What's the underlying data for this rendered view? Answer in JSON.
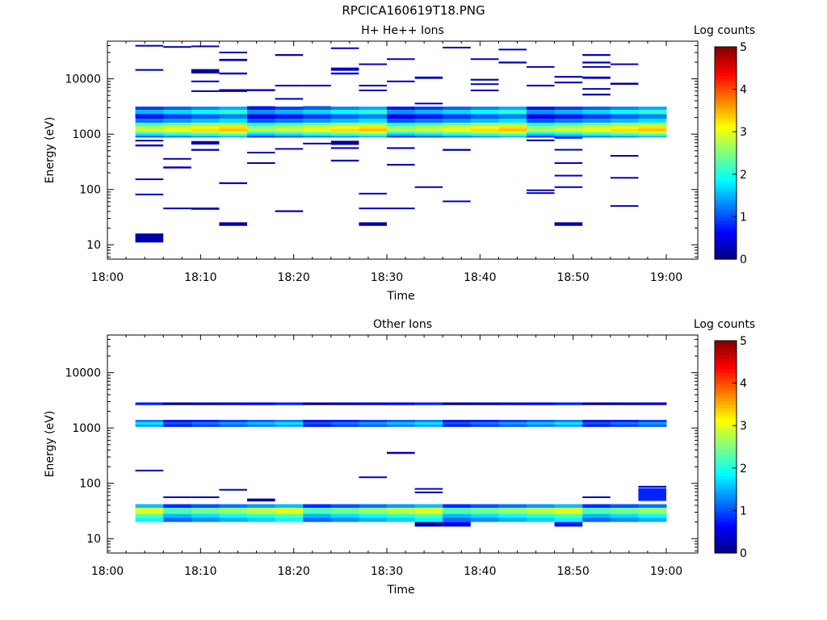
{
  "title": "RPCICA160619T18.PNG",
  "chart_data": [
    {
      "type": "heatmap",
      "title": "H+ He++ Ions",
      "xlabel": "Time",
      "ylabel": "Energy (eV)",
      "x_ticks": [
        "18:00",
        "18:10",
        "18:20",
        "18:30",
        "18:40",
        "18:50",
        "19:00"
      ],
      "y_ticks": [
        "10",
        "100",
        "1000",
        "10000"
      ],
      "y_scale": "log",
      "ylim": [
        5.5,
        48000
      ],
      "colorbar_label": "Log counts",
      "colorbar_ticks": [
        "0",
        "1",
        "2",
        "3",
        "4",
        "5"
      ],
      "cells": [
        {
          "t": "18:03",
          "e": [
            11,
            16
          ],
          "v": 0.2
        },
        {
          "t": "18:03",
          "e": [
            39000,
            41000
          ],
          "v": 0.3
        },
        {
          "t": "18:03",
          "e": [
            14000,
            15000
          ],
          "v": 0.3
        },
        {
          "t": "18:03",
          "e": [
            2100,
            2400
          ],
          "v": 0.4
        },
        {
          "t": "18:03",
          "e": [
            740,
            790
          ],
          "v": 0.3
        },
        {
          "t": "18:03",
          "e": [
            600,
            650
          ],
          "v": 0.3
        },
        {
          "t": "18:03",
          "e": [
            148,
            158
          ],
          "v": 0.3
        },
        {
          "t": "18:03",
          "e": [
            80,
            84
          ],
          "v": 0.4
        },
        {
          "t": "18:06",
          "e": [
            350,
            370
          ],
          "v": 0.3
        },
        {
          "t": "18:06",
          "e": [
            240,
            260
          ],
          "v": 0.3
        },
        {
          "t": "18:06",
          "e": [
            44,
            47
          ],
          "v": 0.3
        },
        {
          "t": "18:06",
          "e": [
            37000,
            39000
          ],
          "v": 0.3
        },
        {
          "t": "18:09",
          "e": [
            12500,
            15000
          ],
          "v": 0.2
        },
        {
          "t": "18:09",
          "e": [
            38000,
            40000
          ],
          "v": 0.3
        },
        {
          "t": "18:09",
          "e": [
            8800,
            9300
          ],
          "v": 0.3
        },
        {
          "t": "18:09",
          "e": [
            5800,
            6200
          ],
          "v": 0.3
        },
        {
          "t": "18:09",
          "e": [
            650,
            750
          ],
          "v": 0.3
        },
        {
          "t": "18:09",
          "e": [
            500,
            540
          ],
          "v": 0.3
        },
        {
          "t": "18:09",
          "e": [
            43,
            47
          ],
          "v": 0.3
        },
        {
          "t": "18:12",
          "e": [
            29000,
            31000
          ],
          "v": 0.3
        },
        {
          "t": "18:12",
          "e": [
            21000,
            23000
          ],
          "v": 0.3
        },
        {
          "t": "18:12",
          "e": [
            12000,
            13000
          ],
          "v": 0.3
        },
        {
          "t": "18:12",
          "e": [
            5800,
            6500
          ],
          "v": 0.2
        },
        {
          "t": "18:12",
          "e": [
            1600,
            1700
          ],
          "v": 0.3
        },
        {
          "t": "18:12",
          "e": [
            125,
            135
          ],
          "v": 0.3
        },
        {
          "t": "18:12",
          "e": [
            22,
            25.5
          ],
          "v": 0.2
        },
        {
          "t": "18:15",
          "e": [
            6000,
            6500
          ],
          "v": 0.3
        },
        {
          "t": "18:15",
          "e": [
            450,
            480
          ],
          "v": 0.3
        },
        {
          "t": "18:15",
          "e": [
            290,
            310
          ],
          "v": 0.3
        },
        {
          "t": "18:15",
          "e": [
            3000,
            3200
          ],
          "v": 0.3
        },
        {
          "t": "18:18",
          "e": [
            26000,
            28000
          ],
          "v": 0.3
        },
        {
          "t": "18:18",
          "e": [
            7400,
            7800
          ],
          "v": 0.3
        },
        {
          "t": "18:18",
          "e": [
            4200,
            4500
          ],
          "v": 0.3
        },
        {
          "t": "18:18",
          "e": [
            530,
            560
          ],
          "v": 0.3
        },
        {
          "t": "18:18",
          "e": [
            39,
            42
          ],
          "v": 0.2
        },
        {
          "t": "18:21",
          "e": [
            7400,
            7800
          ],
          "v": 0.3
        },
        {
          "t": "18:21",
          "e": [
            660,
            700
          ],
          "v": 0.3
        },
        {
          "t": "18:21",
          "e": [
            3000,
            3200
          ],
          "v": 0.3
        },
        {
          "t": "18:24",
          "e": [
            35000,
            37000
          ],
          "v": 0.3
        },
        {
          "t": "18:24",
          "e": [
            14000,
            16000
          ],
          "v": 0.3
        },
        {
          "t": "18:24",
          "e": [
            12000,
            13000
          ],
          "v": 0.3
        },
        {
          "t": "18:24",
          "e": [
            640,
            760
          ],
          "v": 0.2
        },
        {
          "t": "18:24",
          "e": [
            540,
            580
          ],
          "v": 0.3
        },
        {
          "t": "18:24",
          "e": [
            320,
            345
          ],
          "v": 0.3
        },
        {
          "t": "18:27",
          "e": [
            18000,
            19000
          ],
          "v": 0.3
        },
        {
          "t": "18:27",
          "e": [
            7400,
            7800
          ],
          "v": 0.3
        },
        {
          "t": "18:27",
          "e": [
            6000,
            6400
          ],
          "v": 0.3
        },
        {
          "t": "18:27",
          "e": [
            84,
            87
          ],
          "v": 0.4
        },
        {
          "t": "18:27",
          "e": [
            44,
            47
          ],
          "v": 0.3
        },
        {
          "t": "18:27",
          "e": [
            22,
            25.5
          ],
          "v": 0.2
        },
        {
          "t": "18:30",
          "e": [
            22000,
            23500
          ],
          "v": 0.3
        },
        {
          "t": "18:30",
          "e": [
            8800,
            9300
          ],
          "v": 0.3
        },
        {
          "t": "18:30",
          "e": [
            540,
            580
          ],
          "v": 0.3
        },
        {
          "t": "18:30",
          "e": [
            270,
            290
          ],
          "v": 0.3
        },
        {
          "t": "18:30",
          "e": [
            44,
            47
          ],
          "v": 0.3
        },
        {
          "t": "18:33",
          "e": [
            10000,
            11000
          ],
          "v": 0.3
        },
        {
          "t": "18:33",
          "e": [
            3500,
            3700
          ],
          "v": 0.3
        },
        {
          "t": "18:33",
          "e": [
            2100,
            2300
          ],
          "v": 0.3
        },
        {
          "t": "18:33",
          "e": [
            108,
            114
          ],
          "v": 0.3
        },
        {
          "t": "18:36",
          "e": [
            36000,
            38000
          ],
          "v": 0.3
        },
        {
          "t": "18:36",
          "e": [
            1800,
            1900
          ],
          "v": 0.3
        },
        {
          "t": "18:36",
          "e": [
            500,
            540
          ],
          "v": 0.3
        },
        {
          "t": "18:36",
          "e": [
            60,
            63
          ],
          "v": 0.3
        },
        {
          "t": "18:39",
          "e": [
            22000,
            23500
          ],
          "v": 0.3
        },
        {
          "t": "18:39",
          "e": [
            9300,
            10000
          ],
          "v": 0.3
        },
        {
          "t": "18:39",
          "e": [
            7800,
            8300
          ],
          "v": 0.3
        },
        {
          "t": "18:39",
          "e": [
            6000,
            6400
          ],
          "v": 0.3
        },
        {
          "t": "18:42",
          "e": [
            33000,
            35000
          ],
          "v": 0.3
        },
        {
          "t": "18:42",
          "e": [
            19000,
            20500
          ],
          "v": 0.3
        },
        {
          "t": "18:42",
          "e": [
            1700,
            1800
          ],
          "v": 0.3
        },
        {
          "t": "18:45",
          "e": [
            16000,
            17000
          ],
          "v": 0.3
        },
        {
          "t": "18:45",
          "e": [
            7400,
            7800
          ],
          "v": 0.3
        },
        {
          "t": "18:45",
          "e": [
            750,
            800
          ],
          "v": 0.3
        },
        {
          "t": "18:45",
          "e": [
            94,
            100
          ],
          "v": 0.2
        },
        {
          "t": "18:45",
          "e": [
            86,
            89
          ],
          "v": 0.3
        },
        {
          "t": "18:48",
          "e": [
            10500,
            11300
          ],
          "v": 0.3
        },
        {
          "t": "18:48",
          "e": [
            8300,
            8900
          ],
          "v": 0.3
        },
        {
          "t": "18:48",
          "e": [
            830,
            900
          ],
          "v": 0.3
        },
        {
          "t": "18:48",
          "e": [
            510,
            540
          ],
          "v": 0.3
        },
        {
          "t": "18:48",
          "e": [
            290,
            310
          ],
          "v": 0.3
        },
        {
          "t": "18:48",
          "e": [
            178,
            184
          ],
          "v": 0.4
        },
        {
          "t": "18:48",
          "e": [
            108,
            114
          ],
          "v": 0.3
        },
        {
          "t": "18:48",
          "e": [
            22,
            25.5
          ],
          "v": 0.2
        },
        {
          "t": "18:51",
          "e": [
            26000,
            28000
          ],
          "v": 0.3
        },
        {
          "t": "18:51",
          "e": [
            19000,
            20500
          ],
          "v": 0.3
        },
        {
          "t": "18:51",
          "e": [
            16000,
            17000
          ],
          "v": 0.3
        },
        {
          "t": "18:51",
          "e": [
            10000,
            11000
          ],
          "v": 0.3
        },
        {
          "t": "18:51",
          "e": [
            6400,
            6800
          ],
          "v": 0.3
        },
        {
          "t": "18:51",
          "e": [
            5000,
            5400
          ],
          "v": 0.2
        },
        {
          "t": "18:54",
          "e": [
            18000,
            19000
          ],
          "v": 0.3
        },
        {
          "t": "18:54",
          "e": [
            7800,
            8500
          ],
          "v": 0.2
        },
        {
          "t": "18:54",
          "e": [
            400,
            420
          ],
          "v": 0.3
        },
        {
          "t": "18:54",
          "e": [
            160,
            168
          ],
          "v": 0.3
        },
        {
          "t": "18:54",
          "e": [
            49,
            52
          ],
          "v": 0.3
        },
        {
          "t": "band",
          "e": [
            2750,
            3150
          ],
          "v": 1.1
        },
        {
          "t": "band",
          "e": [
            2300,
            2750
          ],
          "v": 1.7
        },
        {
          "t": "band",
          "e": [
            1900,
            2300
          ],
          "v": 0.9
        },
        {
          "t": "band",
          "e": [
            1600,
            1900
          ],
          "v": 1.4
        },
        {
          "t": "band",
          "e": [
            1400,
            1600
          ],
          "v": 2.4
        },
        {
          "t": "band",
          "e": [
            1250,
            1400
          ],
          "v": 2.9
        },
        {
          "t": "band",
          "e": [
            1120,
            1250
          ],
          "v": 3.1
        },
        {
          "t": "band",
          "e": [
            1020,
            1120
          ],
          "v": 2.5
        },
        {
          "t": "band",
          "e": [
            930,
            1020
          ],
          "v": 1.9
        },
        {
          "t": "band",
          "e": [
            880,
            930
          ],
          "v": 1.2
        }
      ]
    },
    {
      "type": "heatmap",
      "title": "Other Ions",
      "xlabel": "Time",
      "ylabel": "Energy (eV)",
      "x_ticks": [
        "18:00",
        "18:10",
        "18:20",
        "18:30",
        "18:40",
        "18:50",
        "19:00"
      ],
      "y_ticks": [
        "10",
        "100",
        "1000",
        "10000"
      ],
      "y_scale": "log",
      "ylim": [
        5.5,
        48000
      ],
      "colorbar_label": "Log counts",
      "colorbar_ticks": [
        "0",
        "1",
        "2",
        "3",
        "4",
        "5"
      ],
      "cells": [
        {
          "t": "18:03",
          "e": [
            168,
            176
          ],
          "v": 0.3
        },
        {
          "t": "18:06",
          "e": [
            55,
            58
          ],
          "v": 0.3
        },
        {
          "t": "18:09",
          "e": [
            55,
            58
          ],
          "v": 0.3
        },
        {
          "t": "18:12",
          "e": [
            75,
            79
          ],
          "v": 0.3
        },
        {
          "t": "18:15",
          "e": [
            47,
            53
          ],
          "v": 0.2
        },
        {
          "t": "18:27",
          "e": [
            125,
            133
          ],
          "v": 0.3
        },
        {
          "t": "18:30",
          "e": [
            340,
            370
          ],
          "v": 0.3
        },
        {
          "t": "18:33",
          "e": [
            79,
            82
          ],
          "v": 0.4
        },
        {
          "t": "18:33",
          "e": [
            68,
            71
          ],
          "v": 0.3
        },
        {
          "t": "18:51",
          "e": [
            55,
            58
          ],
          "v": 0.3
        },
        {
          "t": "18:57",
          "e": [
            84,
            90
          ],
          "v": 0.3
        },
        {
          "t": "18:57",
          "e": [
            48,
            82
          ],
          "v": 0.8
        },
        {
          "t": "18:33",
          "e": [
            16.5,
            20
          ],
          "v": 0.2
        },
        {
          "t": "18:36",
          "e": [
            16.5,
            20
          ],
          "v": 0.6
        },
        {
          "t": "18:48",
          "e": [
            16.5,
            20
          ],
          "v": 0.7
        },
        {
          "t": "band",
          "e": [
            2600,
            2900
          ],
          "v": 0.4
        },
        {
          "t": "band",
          "e": [
            1280,
            1400
          ],
          "v": 0.8
        },
        {
          "t": "band",
          "e": [
            1150,
            1280
          ],
          "v": 1.4
        },
        {
          "t": "band",
          "e": [
            1050,
            1150
          ],
          "v": 1.0
        },
        {
          "t": "band",
          "e": [
            36,
            42
          ],
          "v": 1.2
        },
        {
          "t": "band",
          "e": [
            28,
            36
          ],
          "v": 2.6
        },
        {
          "t": "band",
          "e": [
            24,
            28
          ],
          "v": 1.9
        },
        {
          "t": "band",
          "e": [
            20,
            24
          ],
          "v": 1.5
        }
      ]
    }
  ]
}
